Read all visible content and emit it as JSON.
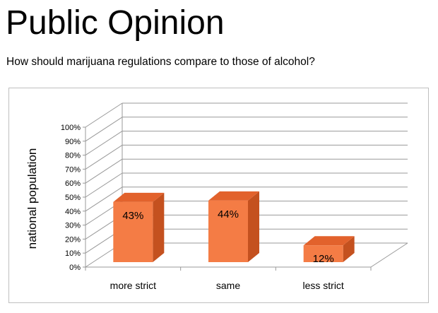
{
  "slide": {
    "title": "Public Opinion",
    "subtitle": "How should marijuana regulations compare to those of alcohol?"
  },
  "chart_data": {
    "type": "bar",
    "ylabel": "national population",
    "xlabel": "",
    "ylim": [
      0,
      100
    ],
    "yticks": [
      "0%",
      "10%",
      "20%",
      "30%",
      "40%",
      "50%",
      "60%",
      "70%",
      "80%",
      "90%",
      "100%"
    ],
    "categories": [
      "more strict",
      "same",
      "less strict"
    ],
    "values": [
      43,
      44,
      12
    ],
    "data_labels": [
      "43%",
      "44%",
      "12%"
    ],
    "grid": true,
    "three_d": true,
    "colors": {
      "bar_front": "#f47c45",
      "bar_top": "#e2622c",
      "bar_side": "#c4511f",
      "grid": "#999999"
    }
  }
}
